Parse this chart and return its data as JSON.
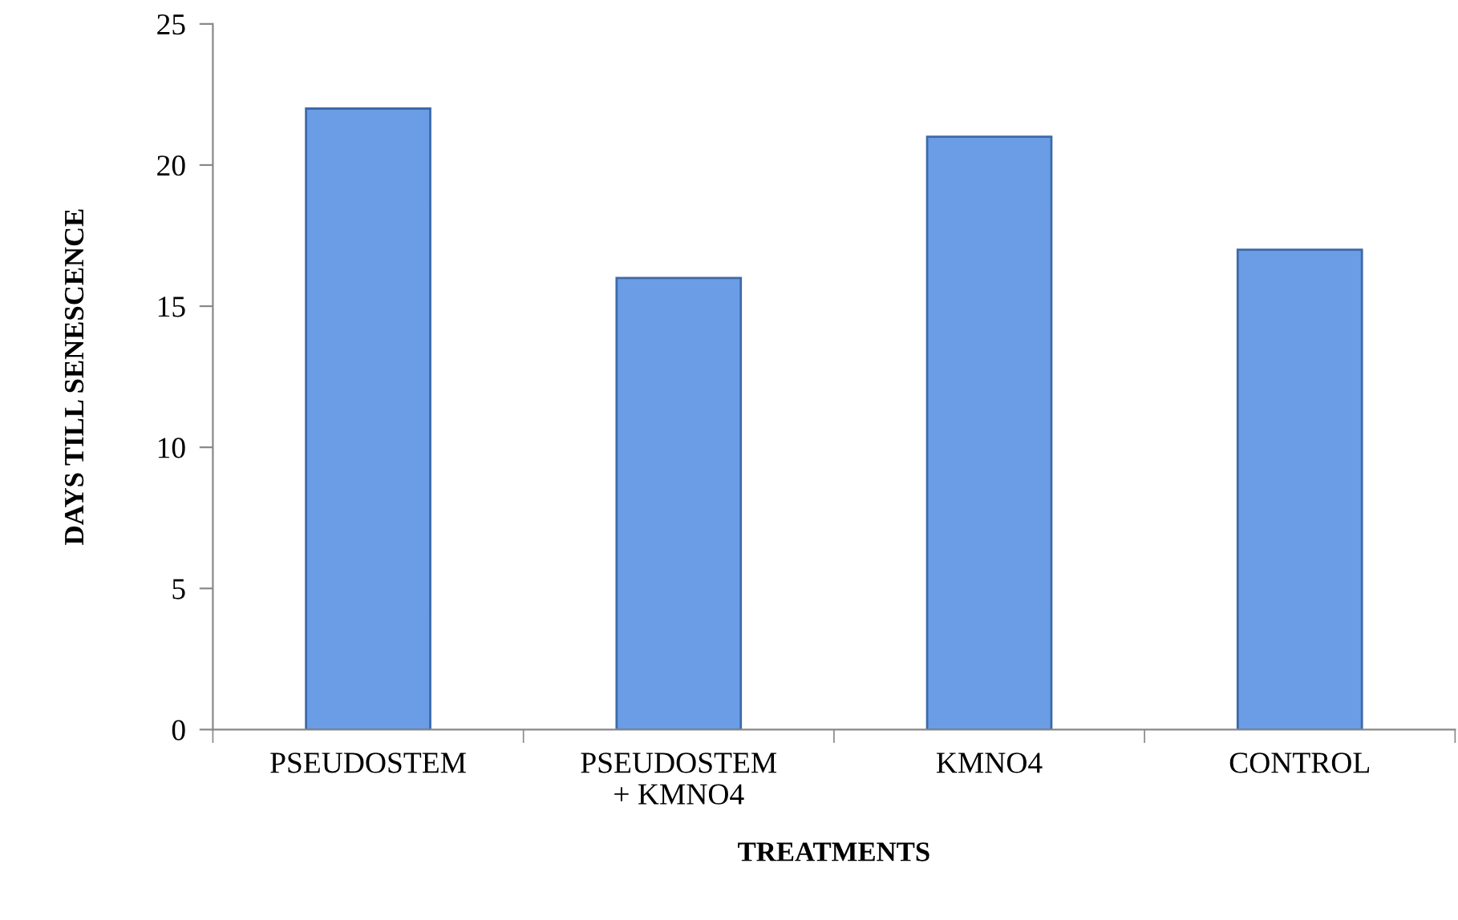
{
  "chart_data": {
    "type": "bar",
    "categories": [
      "PSEUDOSTEM",
      "PSEUDOSTEM\n+ KMNO4",
      "KMNO4",
      "CONTROL"
    ],
    "values": [
      22,
      16,
      21,
      17
    ],
    "color": "#6b9de6",
    "xlabel": "TREATMENTS",
    "ylabel": "DAYS TILL SENESCENCE",
    "ylim": [
      0,
      25
    ],
    "yticks": [
      0,
      5,
      10,
      15,
      20,
      25
    ],
    "grid": false,
    "legend": false
  }
}
